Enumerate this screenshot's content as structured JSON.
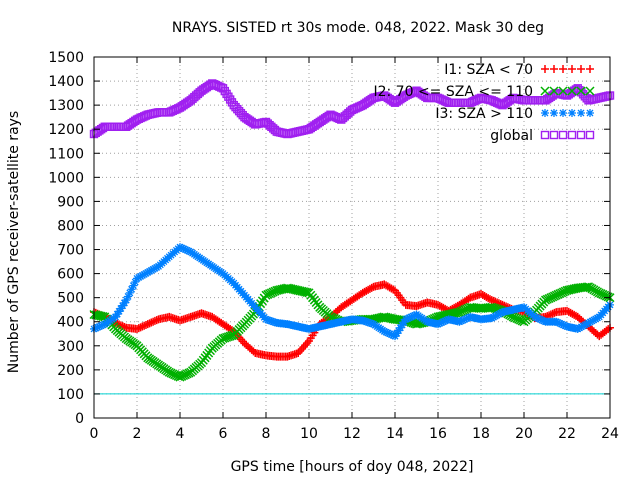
{
  "chart_data": {
    "type": "scatter",
    "title": "NRAYS. SISTED rt 30s mode. 048, 2022. Mask 30 deg",
    "xlabel": "GPS time [hours of doy 048, 2022]",
    "ylabel": "Number of GPS receiver-satellite rays",
    "xlim": [
      0,
      24
    ],
    "ylim": [
      0,
      1500
    ],
    "xticks": [
      0,
      2,
      4,
      6,
      8,
      10,
      12,
      14,
      16,
      18,
      20,
      22,
      24
    ],
    "yticks": [
      0,
      100,
      200,
      300,
      400,
      500,
      600,
      700,
      800,
      900,
      1000,
      1100,
      1200,
      1300,
      1400,
      1500
    ],
    "grid": true,
    "legend_position": "top-right",
    "reference_line": {
      "y": 100,
      "color": "#00d0d0"
    },
    "series": [
      {
        "name": "I1: SZA < 70",
        "color": "#ff0000",
        "marker": "+",
        "x": [
          0,
          0.5,
          1,
          1.5,
          2,
          2.5,
          3,
          3.5,
          4,
          4.5,
          5,
          5.5,
          6,
          6.5,
          7,
          7.5,
          8,
          8.5,
          9,
          9.5,
          10,
          10.5,
          11,
          11.5,
          12,
          12.5,
          13,
          13.5,
          14,
          14.5,
          15,
          15.5,
          16,
          16.5,
          17,
          17.5,
          18,
          18.5,
          19,
          19.5,
          20,
          20.5,
          21,
          21.5,
          22,
          22.5,
          23,
          23.5,
          24
        ],
        "y": [
          440,
          420,
          395,
          375,
          370,
          390,
          410,
          420,
          405,
          420,
          435,
          420,
          390,
          360,
          310,
          270,
          260,
          255,
          255,
          270,
          320,
          390,
          420,
          460,
          490,
          520,
          545,
          555,
          530,
          470,
          465,
          480,
          470,
          445,
          470,
          500,
          515,
          490,
          470,
          450,
          440,
          415,
          420,
          440,
          445,
          420,
          380,
          340,
          375
        ]
      },
      {
        "name": "I2: 70 <= SZA <= 110",
        "color": "#00b000",
        "marker": "x",
        "x": [
          0,
          0.5,
          1,
          1.5,
          2,
          2.5,
          3,
          3.5,
          4,
          4.5,
          5,
          5.5,
          6,
          6.5,
          7,
          7.5,
          8,
          8.5,
          9,
          9.5,
          10,
          10.5,
          11,
          11.5,
          12,
          12.5,
          13,
          13.5,
          14,
          14.5,
          15,
          15.5,
          16,
          16.5,
          17,
          17.5,
          18,
          18.5,
          19,
          19.5,
          20,
          20.5,
          21,
          21.5,
          22,
          22.5,
          23,
          23.5,
          24
        ],
        "y": [
          430,
          420,
          370,
          330,
          300,
          250,
          220,
          190,
          170,
          190,
          230,
          290,
          330,
          345,
          390,
          440,
          510,
          530,
          540,
          530,
          520,
          460,
          420,
          400,
          405,
          410,
          410,
          420,
          410,
          405,
          390,
          400,
          420,
          430,
          440,
          460,
          455,
          460,
          445,
          420,
          400,
          440,
          490,
          510,
          530,
          540,
          545,
          520,
          500
        ]
      },
      {
        "name": "I3: SZA > 110",
        "color": "#0080ff",
        "marker": "*",
        "x": [
          0,
          0.5,
          1,
          1.5,
          2,
          2.5,
          3,
          3.5,
          4,
          4.5,
          5,
          5.5,
          6,
          6.5,
          7,
          7.5,
          8,
          8.5,
          9,
          9.5,
          10,
          10.5,
          11,
          11.5,
          12,
          12.5,
          13,
          13.5,
          14,
          14.5,
          15,
          15.5,
          16,
          16.5,
          17,
          17.5,
          18,
          18.5,
          19,
          19.5,
          20,
          20.5,
          21,
          21.5,
          22,
          22.5,
          23,
          23.5,
          24
        ],
        "y": [
          370,
          390,
          420,
          490,
          580,
          605,
          630,
          670,
          710,
          690,
          660,
          630,
          600,
          560,
          510,
          460,
          410,
          395,
          390,
          380,
          370,
          380,
          390,
          400,
          410,
          405,
          390,
          360,
          340,
          410,
          430,
          400,
          390,
          410,
          400,
          420,
          410,
          415,
          440,
          450,
          460,
          420,
          400,
          400,
          380,
          370,
          395,
          420,
          470
        ]
      },
      {
        "name": "global",
        "color": "#a020f0",
        "marker": "square",
        "x": [
          0,
          0.5,
          1,
          1.5,
          2,
          2.5,
          3,
          3.5,
          4,
          4.5,
          5,
          5.5,
          6,
          6.5,
          7,
          7.5,
          8,
          8.5,
          9,
          9.5,
          10,
          10.5,
          11,
          11.5,
          12,
          12.5,
          13,
          13.5,
          14,
          14.5,
          15,
          15.5,
          16,
          16.5,
          17,
          17.5,
          18,
          18.5,
          19,
          19.5,
          20,
          20.5,
          21,
          21.5,
          22,
          22.5,
          23,
          23.5,
          24
        ],
        "y": [
          1180,
          1210,
          1210,
          1210,
          1240,
          1260,
          1270,
          1270,
          1290,
          1320,
          1360,
          1390,
          1370,
          1300,
          1250,
          1220,
          1230,
          1190,
          1180,
          1190,
          1200,
          1230,
          1260,
          1240,
          1280,
          1300,
          1330,
          1340,
          1310,
          1340,
          1360,
          1330,
          1330,
          1310,
          1310,
          1310,
          1330,
          1320,
          1300,
          1330,
          1320,
          1320,
          1320,
          1350,
          1340,
          1370,
          1320,
          1330,
          1340
        ]
      }
    ]
  }
}
